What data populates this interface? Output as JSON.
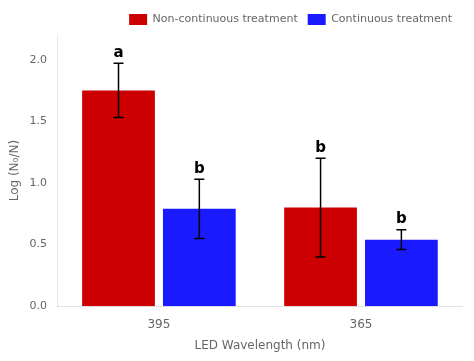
{
  "chart_data": {
    "type": "bar",
    "categories": [
      "395",
      "365"
    ],
    "series": [
      {
        "name": "Non-continuous treatment",
        "color": "#cc0000",
        "values": [
          1.75,
          0.8
        ],
        "errors": [
          0.22,
          0.4
        ],
        "annotations": [
          "a",
          "b"
        ]
      },
      {
        "name": "Continuous treatment",
        "color": "#1a1aff",
        "values": [
          0.79,
          0.54
        ],
        "errors": [
          0.24,
          0.08
        ],
        "annotations": [
          "b",
          "b"
        ]
      }
    ],
    "xlabel": "LED Wavelength (nm)",
    "ylabel": "Log (N₀/N)",
    "ylim": [
      0,
      2.2
    ],
    "yticks": [
      {
        "value": 0.0,
        "label": "0.0"
      },
      0.5,
      {
        "value": 1.0,
        "label": "1.0"
      },
      1.5,
      {
        "value": 2.0,
        "label": "2.0"
      }
    ],
    "grid": false,
    "legend": "upper right"
  }
}
